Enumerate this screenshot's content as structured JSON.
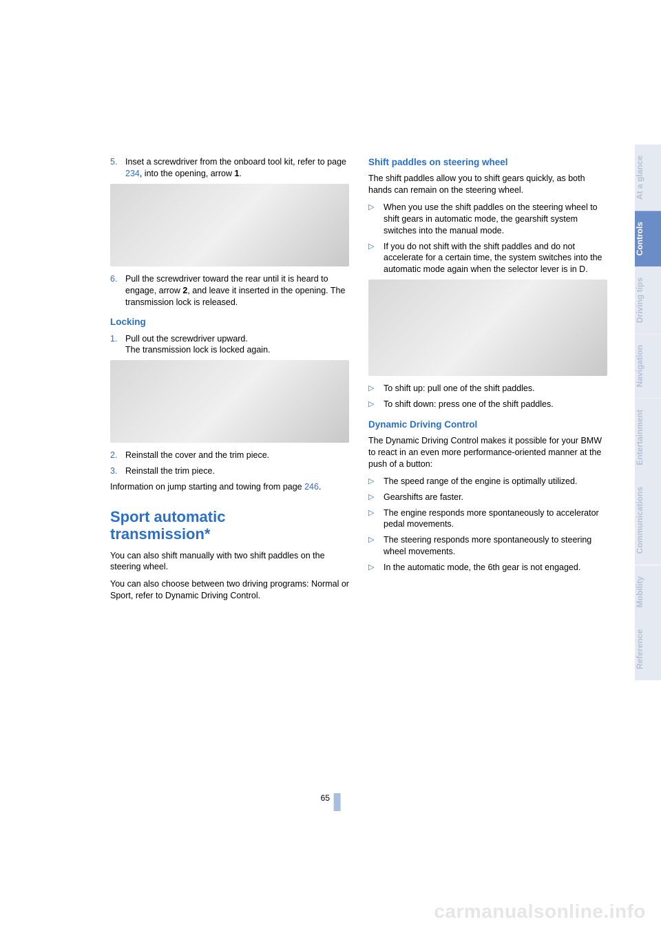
{
  "page_number": "65",
  "watermark": "carmanualsonline.info",
  "colors": {
    "accent": "#2a6fc9",
    "tab_active_bg": "#6a8cc7",
    "tab_inactive_bg": "#e4e9f2",
    "tab_inactive_text": "#b8c2d4",
    "page_bar": "#a9bedd",
    "watermark": "#e6e6e6"
  },
  "tabs": [
    {
      "label": "At a glance",
      "active": false
    },
    {
      "label": "Controls",
      "active": true
    },
    {
      "label": "Driving tips",
      "active": false
    },
    {
      "label": "Navigation",
      "active": false
    },
    {
      "label": "Entertainment",
      "active": false
    },
    {
      "label": "Communications",
      "active": false
    },
    {
      "label": "Mobility",
      "active": false
    },
    {
      "label": "Reference",
      "active": false
    }
  ],
  "left": {
    "step5_num": "5.",
    "step5_a": "Inset a screwdriver from the onboard tool kit, refer to page ",
    "step5_link": "234",
    "step5_b": ", into the opening, arrow ",
    "step5_bold": "1",
    "step5_c": ".",
    "step6_num": "6.",
    "step6_a": "Pull the screwdriver toward the rear until it is heard to engage, arrow ",
    "step6_bold": "2",
    "step6_b": ", and leave it inserted in the opening. The transmission lock is released.",
    "locking_title": "Locking",
    "lock1_num": "1.",
    "lock1_a": "Pull out the screwdriver upward.",
    "lock1_b": "The transmission lock is locked again.",
    "lock2_num": "2.",
    "lock2": "Reinstall the cover and the trim piece.",
    "lock3_num": "3.",
    "lock3": "Reinstall the trim piece.",
    "info_a": "Information on jump starting and towing from page ",
    "info_link": "246",
    "info_b": ".",
    "h2a": "Sport automatic",
    "h2b": "transmission*",
    "sport_p1": "You can also shift manually with two shift paddles on the steering wheel.",
    "sport_p2": "You can also choose between two driving programs: Normal or Sport, refer to Dynamic Driving Control."
  },
  "right": {
    "shift_title": "Shift paddles on steering wheel",
    "shift_intro": "The shift paddles allow you to shift gears quickly, as both hands can remain on the steering wheel.",
    "shift_b1": "When you use the shift paddles on the steering wheel to shift gears in automatic mode, the gearshift system switches into the manual mode.",
    "shift_b2": "If you do not shift with the shift paddles and do not accelerate for a certain time, the system switches into the automatic mode again when the selector lever is in D.",
    "shift_b3": "To shift up: pull one of the shift paddles.",
    "shift_b4": "To shift down: press one of the shift paddles.",
    "ddc_title": "Dynamic Driving Control",
    "ddc_intro": "The Dynamic Driving Control makes it possible for your BMW to react in an even more performance-oriented manner at the push of a button:",
    "ddc_b1": "The speed range of the engine is optimally utilized.",
    "ddc_b2": "Gearshifts are faster.",
    "ddc_b3": "The engine responds more spontaneously to accelerator pedal movements.",
    "ddc_b4": "The steering responds more spontaneously to steering wheel movements.",
    "ddc_b5": "In the automatic mode, the 6th gear is not engaged."
  }
}
